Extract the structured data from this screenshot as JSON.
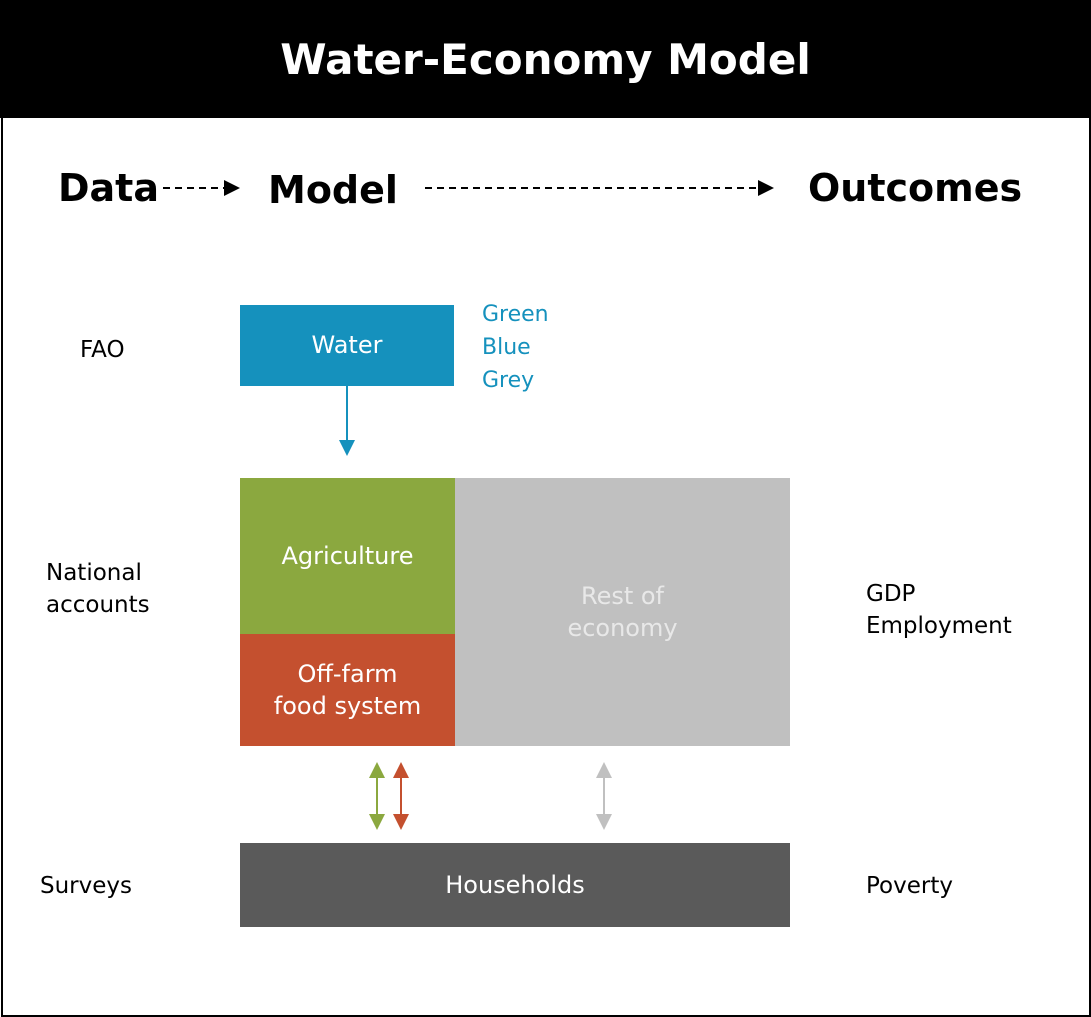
{
  "title": "Water-Economy Model",
  "stages": [
    "Data",
    "Model",
    "Outcomes"
  ],
  "data_sources": [
    "FAO",
    "National accounts",
    "Surveys"
  ],
  "outcomes": [
    [
      "GDP",
      "Employment"
    ],
    [
      "Poverty"
    ]
  ],
  "nodes": [
    {
      "label": "Water",
      "notes": [
        "Green",
        "Blue",
        "Grey"
      ]
    },
    {
      "label": "Agriculture"
    },
    {
      "label": "Off-farm food system"
    },
    {
      "label": "Rest of economy"
    },
    {
      "label": "Households"
    }
  ]
}
